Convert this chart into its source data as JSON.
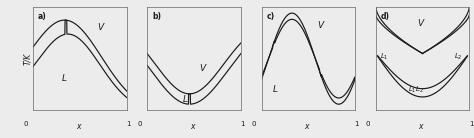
{
  "background": "#ececec",
  "panel_bg": "#ececec",
  "line_color": "#1a1a1a",
  "text_color": "#1a1a1a",
  "panels": [
    "a)",
    "b)",
    "c)",
    "d)"
  ],
  "xlabel": "x",
  "ylabel": "T/K",
  "label_0": "0",
  "label_1": "1"
}
